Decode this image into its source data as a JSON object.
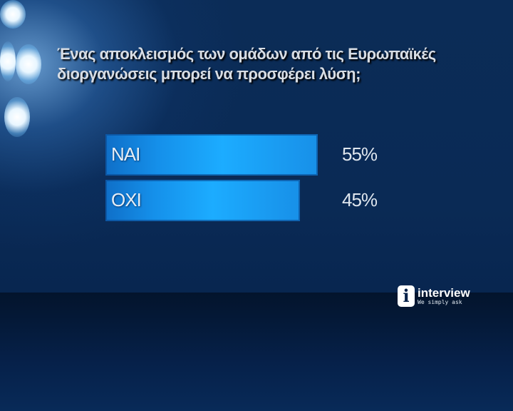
{
  "chart_data": {
    "type": "bar",
    "orientation": "horizontal",
    "title": "Ένας αποκλεισμός των ομάδων από τις Ευρωπαϊκές διοργανώσεις μπορεί να προσφέρει λύση;",
    "title_lines": [
      "Ένας αποκλεισμός των ομάδων από τις Ευρωπαϊκές",
      "διοργανώσεις μπορεί να προσφέρει λύση;"
    ],
    "categories": [
      "ΝΑΙ",
      "ΟΧΙ"
    ],
    "values": [
      55,
      45
    ],
    "value_labels": [
      "55%",
      "45%"
    ],
    "unit": "%",
    "bar_color": "#1cacff",
    "grid": false
  },
  "brand": {
    "name": "interview",
    "tagline": "We simply ask",
    "icon": "info-i-icon"
  }
}
